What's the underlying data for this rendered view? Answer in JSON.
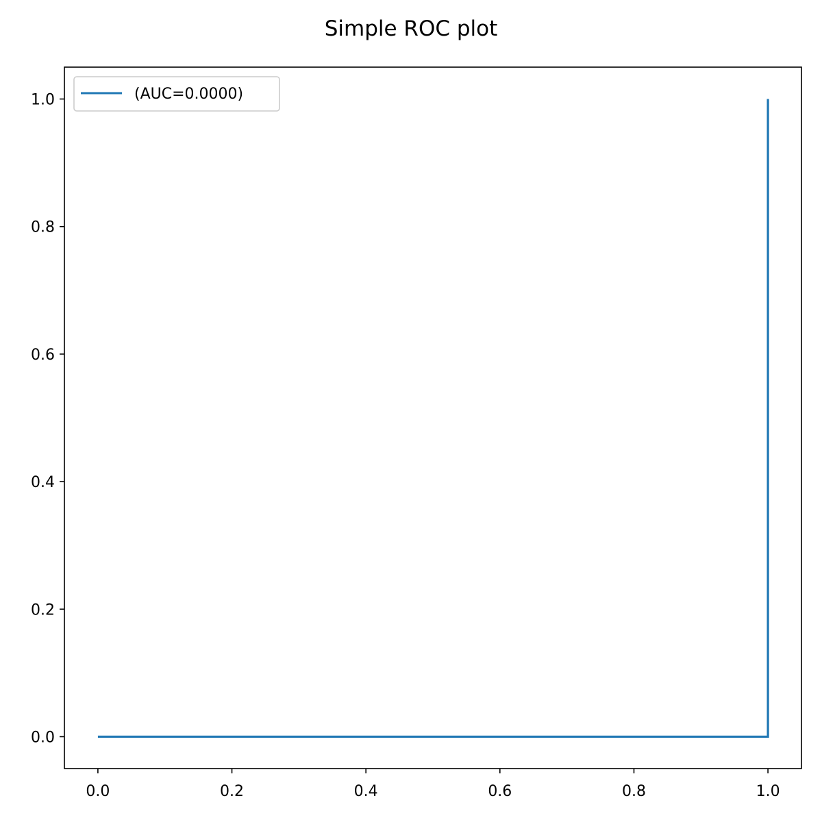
{
  "chart_data": {
    "type": "line",
    "title": "Simple ROC plot",
    "xlabel": "",
    "ylabel": "",
    "xlim": [
      -0.05,
      1.05
    ],
    "ylim": [
      -0.05,
      1.05
    ],
    "x_ticks": [
      "0.0",
      "0.2",
      "0.4",
      "0.6",
      "0.8",
      "1.0"
    ],
    "y_ticks": [
      "0.0",
      "0.2",
      "0.4",
      "0.6",
      "0.8",
      "1.0"
    ],
    "x_tick_values": [
      0.0,
      0.2,
      0.4,
      0.6,
      0.8,
      1.0
    ],
    "y_tick_values": [
      0.0,
      0.2,
      0.4,
      0.6,
      0.8,
      1.0
    ],
    "grid": false,
    "legend_position": "top-left",
    "series": [
      {
        "name": "(AUC=0.0000)",
        "color": "#1f77b4",
        "x": [
          0.0,
          1.0,
          1.0
        ],
        "y": [
          0.0,
          0.0,
          1.0
        ]
      }
    ]
  }
}
